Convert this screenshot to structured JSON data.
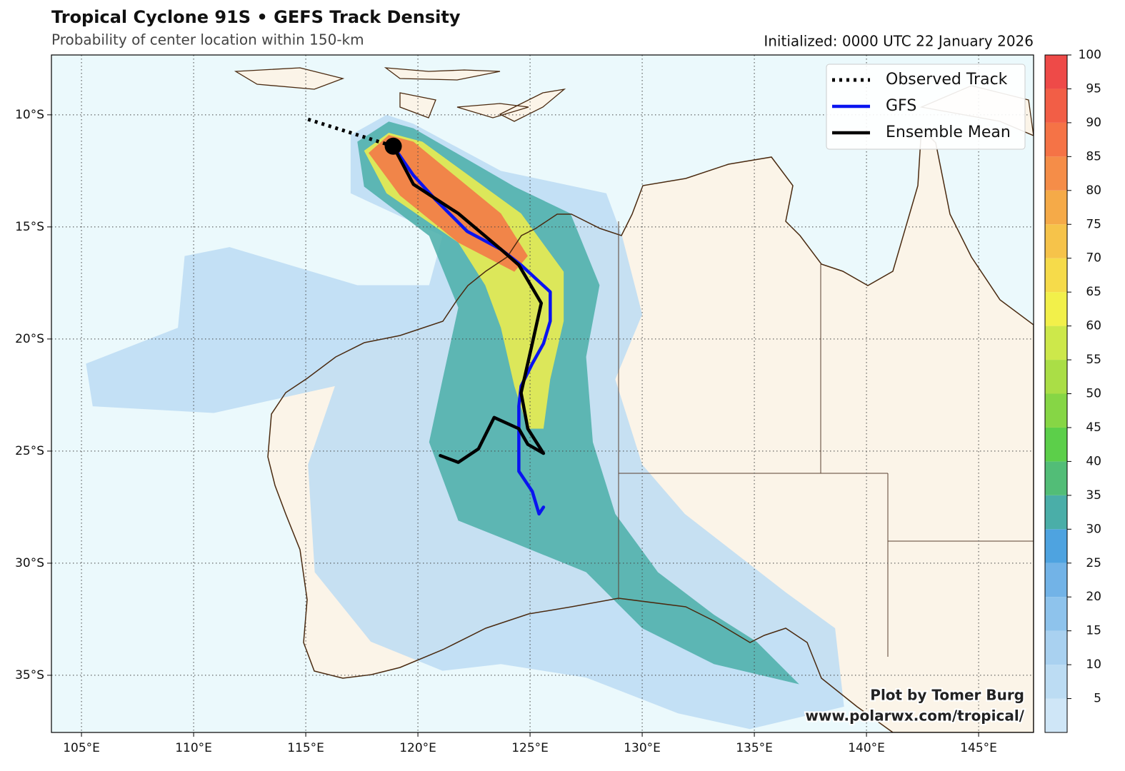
{
  "chart_data": {
    "type": "map",
    "title": "Tropical Cyclone 91S • GEFS Track Density",
    "subtitle": "Probability of center location within 150-km",
    "initialized": "Initialized: 0000 UTC 22 January 2026",
    "credit": [
      "Plot by Tomer Burg",
      "www.polarwx.com/tropical/"
    ],
    "xlim": [
      103.66,
      147.45
    ],
    "ylim": [
      -37.55,
      -7.33
    ],
    "xticks": [
      {
        "value": 105,
        "label": "105°E"
      },
      {
        "value": 110,
        "label": "110°E"
      },
      {
        "value": 115,
        "label": "115°E"
      },
      {
        "value": 120,
        "label": "120°E"
      },
      {
        "value": 125,
        "label": "125°E"
      },
      {
        "value": 130,
        "label": "130°E"
      },
      {
        "value": 135,
        "label": "135°E"
      },
      {
        "value": 140,
        "label": "140°E"
      },
      {
        "value": 145,
        "label": "145°E"
      }
    ],
    "yticks": [
      {
        "value": -10,
        "label": "10°S"
      },
      {
        "value": -15,
        "label": "15°S"
      },
      {
        "value": -20,
        "label": "20°S"
      },
      {
        "value": -25,
        "label": "25°S"
      },
      {
        "value": -30,
        "label": "30°S"
      },
      {
        "value": -35,
        "label": "35°S"
      }
    ],
    "grid": true,
    "legend": "upper right",
    "series": [
      {
        "name": "Observed Track",
        "color": "#000000",
        "style": "dotted",
        "lon": [
          115.1,
          118.9
        ],
        "lat": [
          -10.2,
          -11.4
        ]
      },
      {
        "name": "GFS",
        "color": "#0a14f0",
        "style": "solid",
        "lon": [
          118.9,
          119.8,
          120.8,
          122.2,
          123.7,
          124.6,
          125.9,
          125.9,
          125.6,
          125.1,
          124.6,
          124.5,
          124.5,
          125.1,
          125.4,
          125.6
        ],
        "lat": [
          -11.4,
          -12.7,
          -13.8,
          -15.2,
          -16.0,
          -16.7,
          -17.9,
          -19.2,
          -20.2,
          -21.1,
          -22.1,
          -23.0,
          -25.9,
          -26.8,
          -27.8,
          -27.5
        ]
      },
      {
        "name": "Ensemble Mean",
        "color": "#000000",
        "style": "solid",
        "lon": [
          118.9,
          119.8,
          121.8,
          123.7,
          124.5,
          125.5,
          125.1,
          124.6,
          124.9,
          125.6,
          124.9,
          124.5,
          123.4,
          122.7,
          121.8,
          121.0
        ],
        "lat": [
          -11.4,
          -13.1,
          -14.4,
          -16.0,
          -16.7,
          -18.4,
          -20.2,
          -22.4,
          -24.0,
          -25.1,
          -24.7,
          -24.0,
          -23.5,
          -24.9,
          -25.5,
          -25.2
        ]
      }
    ],
    "density": [
      {
        "level": 5,
        "lon": [
          117.0,
          118.6,
          119.8,
          123.7,
          128.4,
          129.1,
          130.0,
          128.8,
          130.0,
          131.9,
          136.4,
          138.6,
          139.0,
          134.8,
          131.6,
          127.5,
          123.7,
          121.1,
          117.9,
          115.4,
          115.1,
          116.3,
          110.9,
          105.5,
          105.2,
          109.3,
          109.6,
          111.6,
          117.3,
          120.5,
          121.1,
          117.0
        ],
        "lat": [
          -10.9,
          -10.0,
          -10.4,
          -12.5,
          -13.5,
          -15.4,
          -18.9,
          -21.8,
          -25.6,
          -27.8,
          -31.3,
          -32.9,
          -36.4,
          -37.4,
          -36.7,
          -35.1,
          -34.5,
          -34.8,
          -33.5,
          -30.4,
          -25.6,
          -22.1,
          -23.3,
          -23.0,
          -21.1,
          -19.5,
          -16.3,
          -15.9,
          -17.6,
          -17.6,
          -15.4,
          -13.5
        ]
      },
      {
        "level": 30,
        "lon": [
          117.3,
          118.7,
          119.8,
          124.3,
          126.8,
          128.1,
          127.5,
          127.8,
          128.8,
          130.7,
          133.2,
          135.1,
          137.0,
          133.2,
          130.0,
          127.5,
          124.3,
          121.8,
          120.5,
          121.1,
          121.8,
          120.5,
          117.6
        ],
        "lat": [
          -11.2,
          -10.3,
          -10.6,
          -13.2,
          -14.4,
          -17.6,
          -20.8,
          -24.6,
          -27.8,
          -30.4,
          -32.3,
          -33.5,
          -35.4,
          -34.5,
          -32.9,
          -30.4,
          -29.1,
          -28.1,
          -24.6,
          -21.8,
          -18.6,
          -15.4,
          -13.2
        ]
      },
      {
        "level": 60,
        "lon": [
          117.6,
          118.7,
          120.2,
          124.6,
          126.5,
          126.5,
          125.9,
          125.6,
          124.9,
          124.3,
          123.7,
          123.0,
          121.8,
          118.6
        ],
        "lat": [
          -11.6,
          -10.8,
          -11.2,
          -14.4,
          -17.0,
          -19.2,
          -21.8,
          -24.0,
          -24.0,
          -22.1,
          -19.5,
          -17.6,
          -15.7,
          -13.5
        ]
      },
      {
        "level": 85,
        "lon": [
          117.8,
          118.7,
          119.8,
          123.7,
          124.9,
          124.3,
          121.8,
          119.2
        ],
        "lat": [
          -11.7,
          -10.9,
          -11.2,
          -14.4,
          -16.3,
          -17.0,
          -15.7,
          -13.6
        ]
      }
    ],
    "colorbar": {
      "levels": [
        0,
        5,
        10,
        15,
        20,
        25,
        30,
        35,
        40,
        45,
        50,
        55,
        60,
        65,
        70,
        75,
        80,
        85,
        90,
        95,
        100
      ],
      "colors": [
        "#cfe6f7",
        "#bcdcf3",
        "#a9d1f0",
        "#8ec3ec",
        "#72b3e7",
        "#4ea3e0",
        "#4aaea8",
        "#52bd77",
        "#5ccf4a",
        "#86d645",
        "#aade46",
        "#cde84a",
        "#f2f04a",
        "#f6db4a",
        "#f6c34a",
        "#f5aa48",
        "#f58d48",
        "#f57346",
        "#f25e46",
        "#ee4a48"
      ],
      "ticks": [
        5,
        10,
        15,
        20,
        25,
        30,
        35,
        40,
        45,
        50,
        55,
        60,
        65,
        70,
        75,
        80,
        85,
        90,
        95,
        100
      ]
    }
  }
}
